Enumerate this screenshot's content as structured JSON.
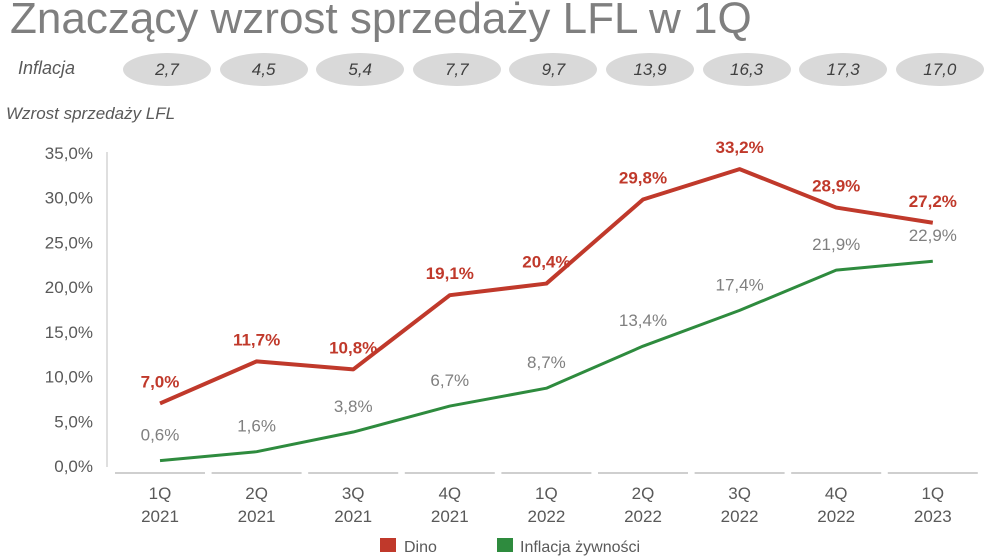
{
  "title": "Znaczący wzrost sprzedaży LFL w 1Q",
  "inflation_row": {
    "label": "Inflacja",
    "values": [
      "2,7",
      "4,5",
      "5,4",
      "7,7",
      "9,7",
      "13,9",
      "16,3",
      "17,3",
      "17,0"
    ]
  },
  "chart_data": {
    "type": "line",
    "title": "Wzrost sprzedaży LFL",
    "xlabel": "",
    "ylabel": "",
    "categories": [
      [
        "1Q",
        "2021"
      ],
      [
        "2Q",
        "2021"
      ],
      [
        "3Q",
        "2021"
      ],
      [
        "4Q",
        "2021"
      ],
      [
        "1Q",
        "2022"
      ],
      [
        "2Q",
        "2022"
      ],
      [
        "3Q",
        "2022"
      ],
      [
        "4Q",
        "2022"
      ],
      [
        "1Q",
        "2023"
      ]
    ],
    "ylim": [
      0,
      35
    ],
    "yticks": [
      0,
      5,
      10,
      15,
      20,
      25,
      30,
      35
    ],
    "ytick_labels": [
      "0,0%",
      "5,0%",
      "10,0%",
      "15,0%",
      "20,0%",
      "25,0%",
      "30,0%",
      "35,0%"
    ],
    "series": [
      {
        "name": "Dino",
        "color": "#c0392b",
        "values": [
          7.0,
          11.7,
          10.8,
          19.1,
          20.4,
          29.8,
          33.2,
          28.9,
          27.2
        ],
        "labels": [
          "7,0%",
          "11,7%",
          "10,8%",
          "19,1%",
          "20,4%",
          "29,8%",
          "33,2%",
          "28,9%",
          "27,2%"
        ]
      },
      {
        "name": "Inflacja żywności",
        "color": "#2e8b3e",
        "values": [
          0.6,
          1.6,
          3.8,
          6.7,
          8.7,
          13.4,
          17.4,
          21.9,
          22.9
        ],
        "labels": [
          "0,6%",
          "1,6%",
          "3,8%",
          "6,7%",
          "8,7%",
          "13,4%",
          "17,4%",
          "21,9%",
          "22,9%"
        ]
      }
    ],
    "legend": "bottom",
    "grid": false
  }
}
